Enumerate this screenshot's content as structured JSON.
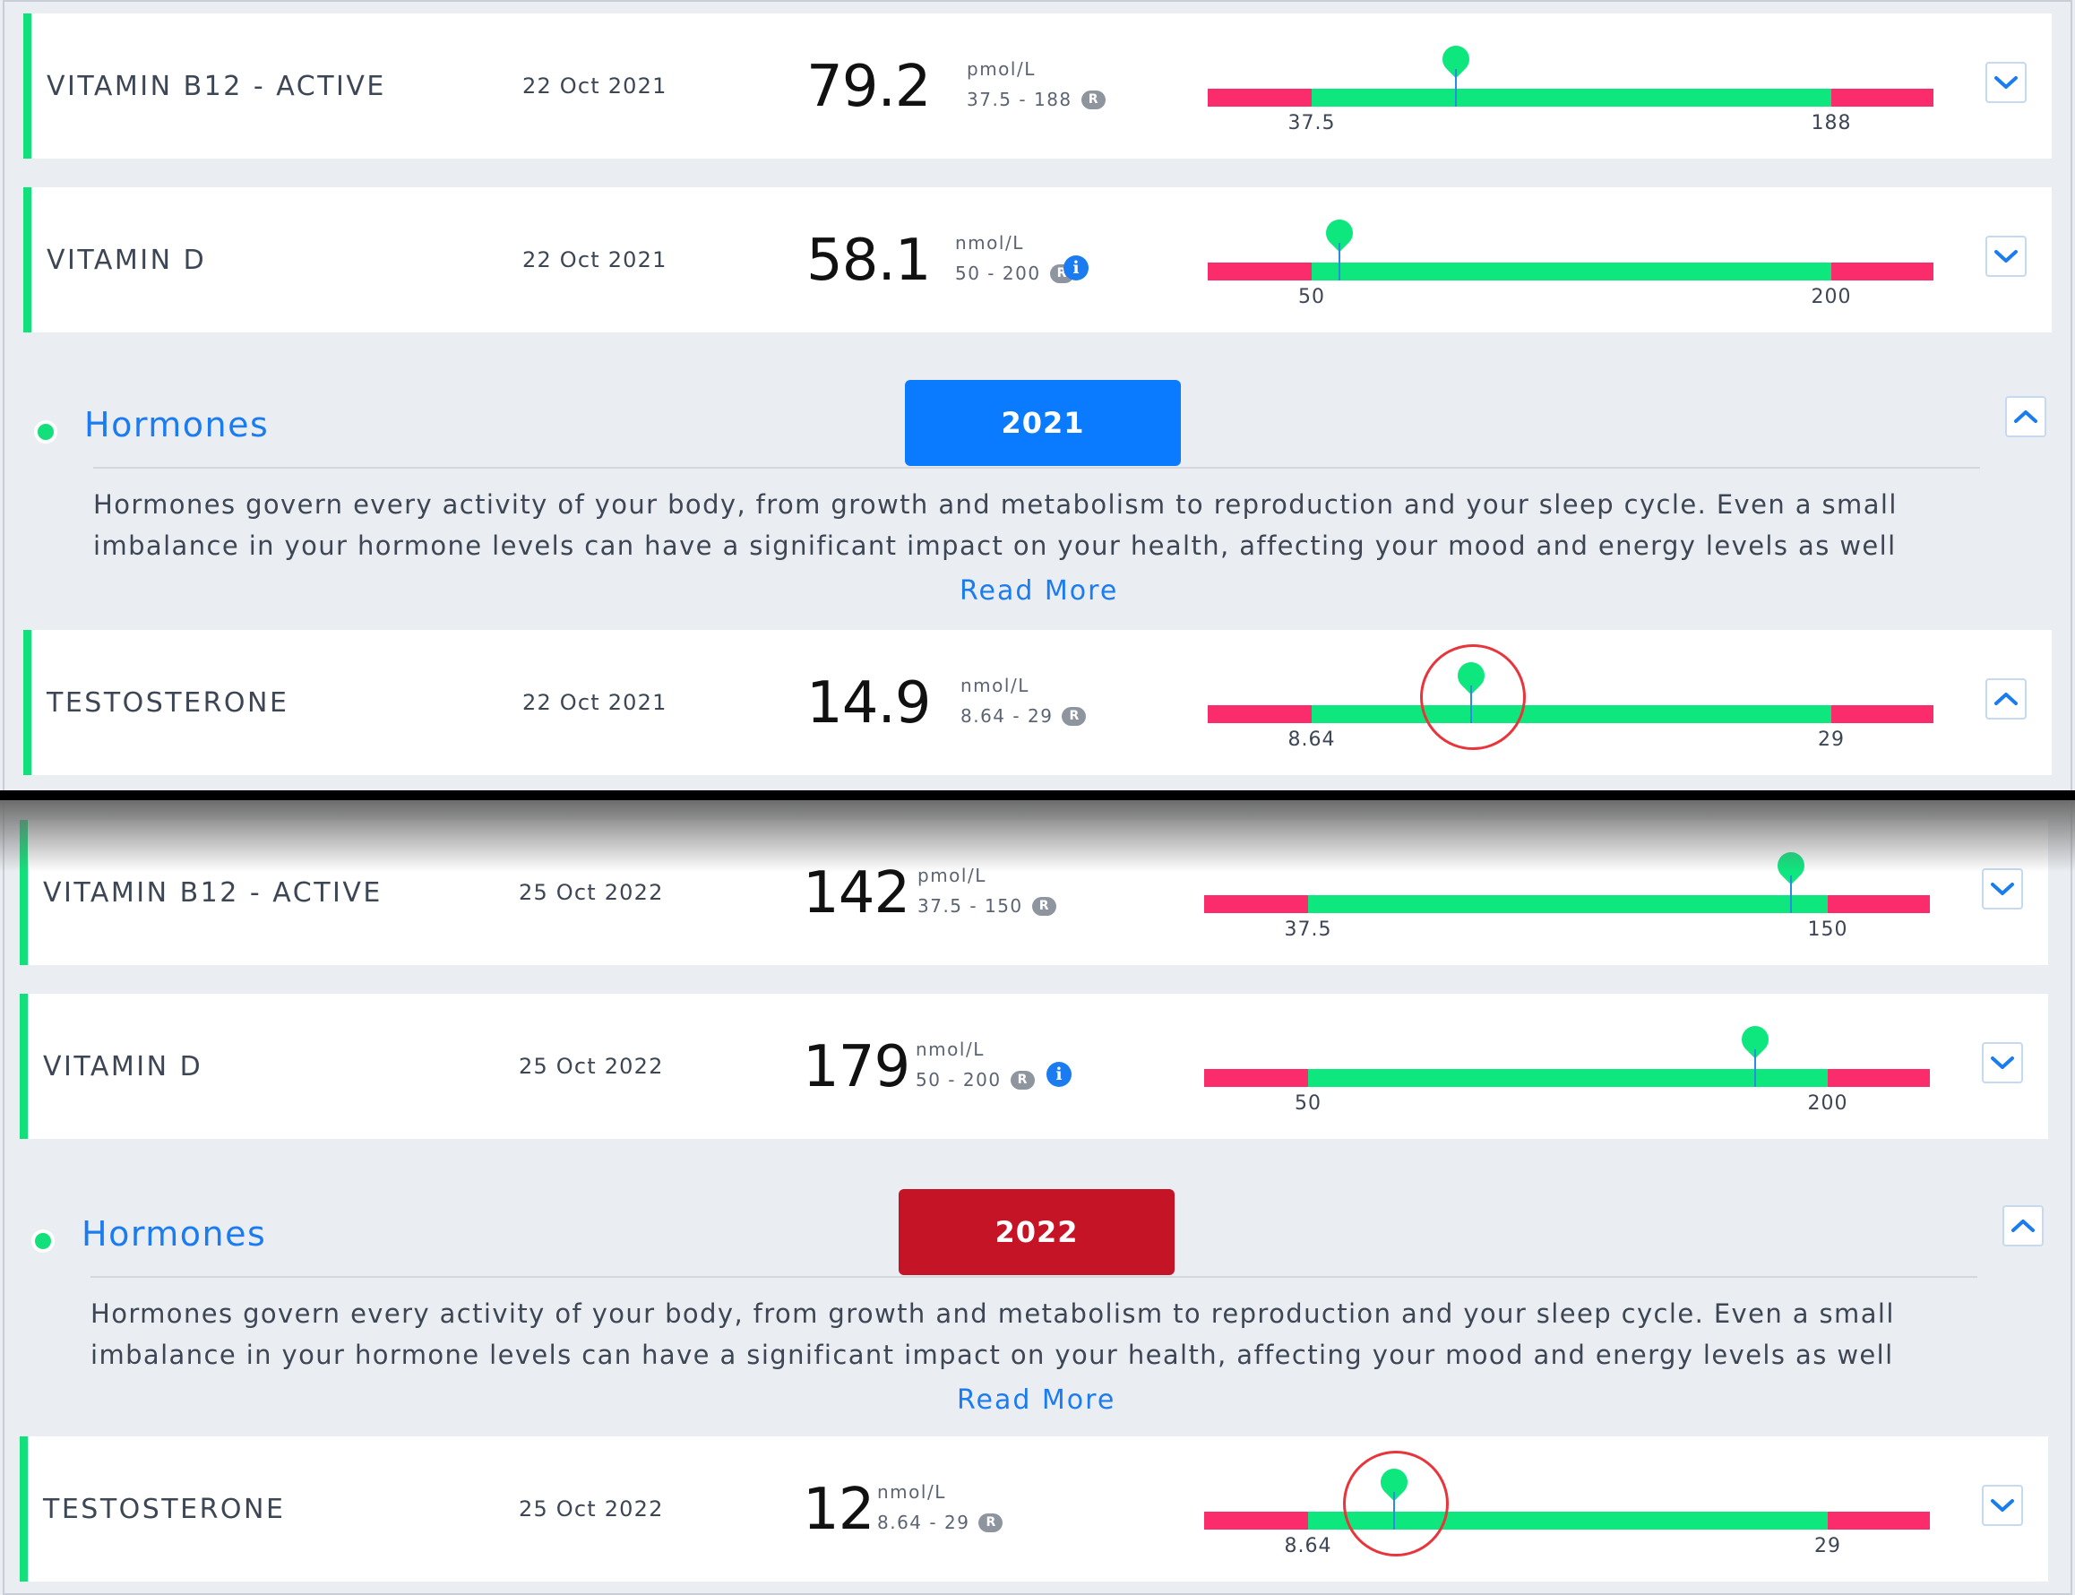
{
  "colors": {
    "accent_green": "#13e07a",
    "range_green": "#0de77e",
    "range_red": "#fb2c6b",
    "link_blue": "#1a7cf0",
    "badge_2021": "#0a7bff",
    "badge_2022": "#c51426",
    "highlight_red": "#e8353c"
  },
  "icons": {
    "expand": "chevron-down-icon",
    "collapse": "chevron-up-icon",
    "info": "info-icon",
    "marker": "map-pin-icon"
  },
  "panels": [
    {
      "markers": [
        {
          "name": "VITAMIN B12 - ACTIVE",
          "date": "22 Oct 2021",
          "value": "79.2",
          "value_num": 79.2,
          "unit": "pmol/L",
          "range_text": "37.5 - 188",
          "range_low": 37.5,
          "range_high": 188,
          "range_badge": "R",
          "has_info": false,
          "highlighted": false,
          "expanded": false
        },
        {
          "name": "VITAMIN D",
          "date": "22 Oct 2021",
          "value": "58.1",
          "value_num": 58.1,
          "unit": "nmol/L",
          "range_text": "50 - 200",
          "range_low": 50,
          "range_high": 200,
          "range_badge": "R",
          "has_info": true,
          "info_glyph": "i",
          "highlighted": false,
          "expanded": false
        }
      ],
      "hormones": {
        "title": "Hormones",
        "year": "2021",
        "description": "Hormones govern every activity of your body, from growth and metabolism to reproduction and your sleep cycle. Even a small imbalance in your hormone levels can have a significant impact on your health, affecting your mood and energy levels as well",
        "read_more": "Read More"
      },
      "testosterone": {
        "name": "TESTOSTERONE",
        "date": "22 Oct 2021",
        "value": "14.9",
        "value_num": 14.9,
        "unit": "nmol/L",
        "range_text": "8.64 - 29",
        "range_low": 8.64,
        "range_high": 29,
        "range_badge": "R",
        "has_info": false,
        "highlighted": true,
        "expanded": true
      }
    },
    {
      "markers": [
        {
          "name": "VITAMIN B12 - ACTIVE",
          "date": "25 Oct 2022",
          "value": "142",
          "value_num": 142,
          "unit": "pmol/L",
          "range_text": "37.5 - 150",
          "range_low": 37.5,
          "range_high": 150,
          "range_badge": "R",
          "has_info": false,
          "highlighted": false,
          "expanded": false
        },
        {
          "name": "VITAMIN D",
          "date": "25 Oct 2022",
          "value": "179",
          "value_num": 179,
          "unit": "nmol/L",
          "range_text": "50 - 200",
          "range_low": 50,
          "range_high": 200,
          "range_badge": "R",
          "has_info": true,
          "info_glyph": "i",
          "highlighted": false,
          "expanded": false
        }
      ],
      "hormones": {
        "title": "Hormones",
        "year": "2022",
        "description": "Hormones govern every activity of your body, from growth and metabolism to reproduction and your sleep cycle. Even a small imbalance in your hormone levels can have a significant impact on your health, affecting your mood and energy levels as well",
        "read_more": "Read More"
      },
      "testosterone": {
        "name": "TESTOSTERONE",
        "date": "25 Oct 2022",
        "value": "12",
        "value_num": 12,
        "unit": "nmol/L",
        "range_text": "8.64 - 29",
        "range_low": 8.64,
        "range_high": 29,
        "range_badge": "R",
        "has_info": false,
        "highlighted": true,
        "expanded": false
      }
    }
  ]
}
